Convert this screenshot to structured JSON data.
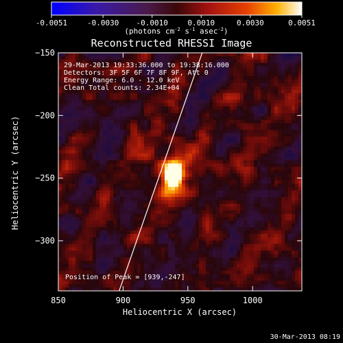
{
  "chart_data": {
    "type": "heatmap",
    "title": "Reconstructed RHESSI Image",
    "xlabel": "Heliocentric X (arcsec)",
    "ylabel": "Heliocentric Y (arcsec)",
    "xlim": [
      850,
      1038
    ],
    "ylim": [
      -340,
      -150
    ],
    "x_ticks": [
      850,
      900,
      950,
      1000
    ],
    "y_ticks": [
      -150,
      -200,
      -250,
      -300
    ],
    "colorbar": {
      "min": -0.0051,
      "max": 0.0051,
      "ticks": [
        "-0.0051",
        "-0.0030",
        "-0.0010",
        "0.0010",
        "0.0030",
        "0.0051"
      ],
      "unit_label": "(photons cm",
      "unit_exp1": "-2",
      "unit_mid": " s",
      "unit_exp2": "-1",
      "unit_mid2": " asec",
      "unit_exp3": "-2",
      "unit_end": ")"
    },
    "peak": {
      "x": 939,
      "y": -247,
      "value": 0.0051
    },
    "limb": {
      "x_at_top": 962,
      "x_at_bottom": 897
    },
    "annotations": {
      "time": "29-Mar-2013 19:33:36.000 to 19:38:16.000",
      "detectors": "Detectors: 3F 5F 6F 7F 8F 9F, Att 0",
      "energy": "Energy Range: 6.0 - 12.0 keV",
      "clean": "Clean    Total counts: 2.34E+04",
      "peak_text": "Position of Peak = [939,-247]"
    },
    "timestamp": "30-Mar-2013 08:19"
  }
}
